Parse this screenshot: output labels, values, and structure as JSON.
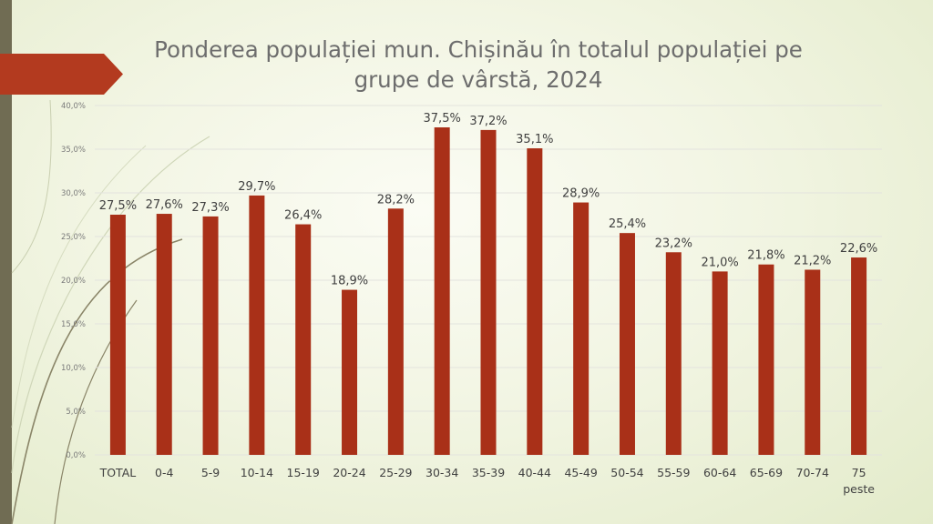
{
  "slide": {
    "title": "Ponderea populației mun. Chișinău în totalul populației pe grupe de vârstă, 2024"
  },
  "colors": {
    "bar": "#a93018",
    "accent": "#b33a1f",
    "side_bar": "#706c53",
    "text": "#595959",
    "grid": "#e3e3de"
  },
  "chart_data": {
    "type": "bar",
    "title": "Ponderea populației mun. Chișinău în totalul populației pe grupe de vârstă, 2024",
    "xlabel": "",
    "ylabel": "",
    "categories": [
      "TOTAL",
      "0-4",
      "5-9",
      "10-14",
      "15-19",
      "20-24",
      "25-29",
      "30-34",
      "35-39",
      "40-44",
      "45-49",
      "50-54",
      "55-59",
      "60-64",
      "65-69",
      "70-74",
      "75 peste"
    ],
    "values": [
      27.5,
      27.6,
      27.3,
      29.7,
      26.4,
      18.9,
      28.2,
      37.5,
      37.2,
      35.1,
      28.9,
      25.4,
      23.2,
      21.0,
      21.8,
      21.2,
      22.6
    ],
    "value_labels": [
      "27,5%",
      "27,6%",
      "27,3%",
      "29,7%",
      "26,4%",
      "18,9%",
      "28,2%",
      "37,5%",
      "37,2%",
      "35,1%",
      "28,9%",
      "25,4%",
      "23,2%",
      "21,0%",
      "21,8%",
      "21,2%",
      "22,6%"
    ],
    "ylim": [
      0,
      40
    ],
    "y_ticks": [
      0,
      5,
      10,
      15,
      20,
      25,
      30,
      35,
      40
    ],
    "y_tick_labels": [
      "0,0%",
      "5,0%",
      "10,0%",
      "15,0%",
      "20,0%",
      "25,0%",
      "30,0%",
      "35,0%",
      "40,0%"
    ],
    "grid": true,
    "legend": "none"
  }
}
